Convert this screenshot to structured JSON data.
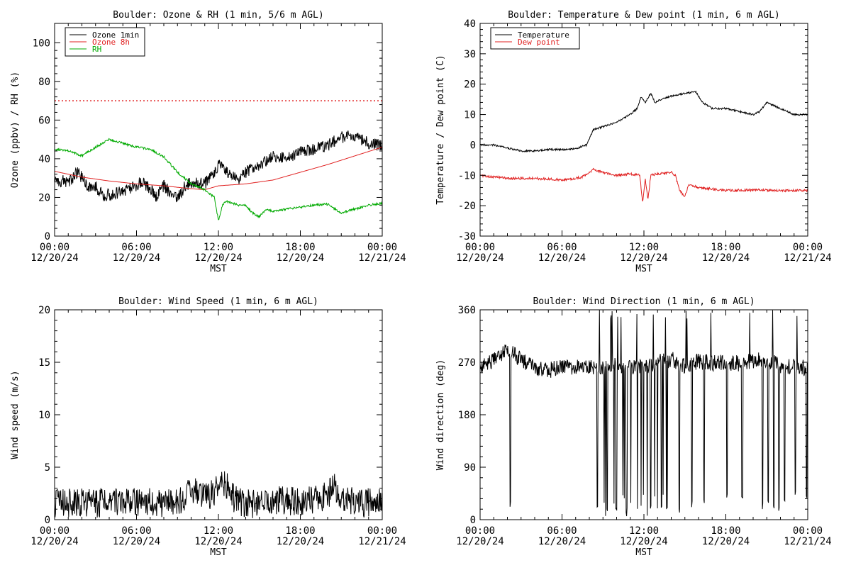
{
  "chart_data": [
    {
      "type": "line",
      "title": "Boulder: Ozone & RH (1 min, 5/6 m AGL)",
      "xlabel": "MST",
      "ylabel": "Ozone (ppbv) / RH (%)",
      "xlim": [
        "12/20/24 00:00",
        "12/21/24 00:00"
      ],
      "ylim": [
        0,
        110
      ],
      "yticks": [
        0,
        20,
        40,
        60,
        80,
        100
      ],
      "xticks": [
        "00:00\n12/20/24",
        "06:00\n12/20/24",
        "12:00\n12/20/24",
        "18:00\n12/20/24",
        "00:00\n12/21/24"
      ],
      "legend": "top-left",
      "reference_line": {
        "value": 70,
        "color": "#e02020",
        "style": "dotted"
      },
      "series": [
        {
          "name": "Ozone 1min",
          "color": "#000000",
          "noise": 3.2,
          "points": [
            [
              0,
              29
            ],
            [
              1,
              28
            ],
            [
              1.7,
              33
            ],
            [
              2.5,
              25
            ],
            [
              3,
              26
            ],
            [
              3.5,
              21
            ],
            [
              4.5,
              22
            ],
            [
              5.5,
              25
            ],
            [
              6.5,
              28
            ],
            [
              7,
              24
            ],
            [
              7.5,
              20
            ],
            [
              8,
              26
            ],
            [
              8.5,
              22
            ],
            [
              9,
              20
            ],
            [
              9.5,
              25
            ],
            [
              10,
              28
            ],
            [
              11,
              27
            ],
            [
              11.5,
              31
            ],
            [
              12,
              37
            ],
            [
              13,
              31
            ],
            [
              13.5,
              30
            ],
            [
              14,
              33
            ],
            [
              15,
              37
            ],
            [
              16,
              41
            ],
            [
              17,
              40
            ],
            [
              18,
              44
            ],
            [
              19,
              45
            ],
            [
              20,
              47
            ],
            [
              21,
              51
            ],
            [
              22,
              52
            ],
            [
              23,
              48
            ],
            [
              24,
              47
            ]
          ]
        },
        {
          "name": "Ozone 8h",
          "color": "#e02020",
          "noise": 0,
          "points": [
            [
              0,
              33.5
            ],
            [
              2,
              30.5
            ],
            [
              4,
              28.5
            ],
            [
              6,
              27
            ],
            [
              8,
              26
            ],
            [
              10,
              24.5
            ],
            [
              11,
              24
            ],
            [
              12,
              26
            ],
            [
              14,
              27
            ],
            [
              16,
              29
            ],
            [
              18,
              33
            ],
            [
              20,
              37
            ],
            [
              22,
              41.5
            ],
            [
              24,
              46
            ]
          ]
        },
        {
          "name": "RH",
          "color": "#00aa00",
          "noise": 0.6,
          "points": [
            [
              0,
              45
            ],
            [
              1,
              44
            ],
            [
              2,
              41.5
            ],
            [
              3,
              46
            ],
            [
              4,
              50
            ],
            [
              5,
              48
            ],
            [
              6,
              46
            ],
            [
              7,
              45
            ],
            [
              8,
              41
            ],
            [
              9,
              33
            ],
            [
              10,
              27
            ],
            [
              11,
              24
            ],
            [
              11.7,
              20
            ],
            [
              12,
              8
            ],
            [
              12.3,
              16
            ],
            [
              12.6,
              18
            ],
            [
              13.5,
              16
            ],
            [
              14,
              16
            ],
            [
              14.5,
              12
            ],
            [
              15,
              10
            ],
            [
              15.5,
              14
            ],
            [
              16,
              13
            ],
            [
              17,
              14
            ],
            [
              18,
              15
            ],
            [
              19,
              16
            ],
            [
              20,
              16.5
            ],
            [
              21,
              12
            ],
            [
              22,
              14
            ],
            [
              23,
              16
            ],
            [
              24,
              17
            ]
          ]
        }
      ]
    },
    {
      "type": "line",
      "title": "Boulder: Temperature & Dew point (1 min, 6 m AGL)",
      "xlabel": "MST",
      "ylabel": "Temperature / Dew point (C)",
      "xlim": [
        "12/20/24 00:00",
        "12/21/24 00:00"
      ],
      "ylim": [
        -30,
        40
      ],
      "yticks": [
        -30,
        -20,
        -10,
        0,
        10,
        20,
        30,
        40
      ],
      "xticks": [
        "00:00\n12/20/24",
        "06:00\n12/20/24",
        "12:00\n12/20/24",
        "18:00\n12/20/24",
        "00:00\n12/21/24"
      ],
      "legend": "top-left",
      "series": [
        {
          "name": "Temperature",
          "color": "#000000",
          "noise": 0.3,
          "points": [
            [
              0,
              0
            ],
            [
              1,
              0
            ],
            [
              2,
              -1
            ],
            [
              3,
              -2
            ],
            [
              4,
              -2
            ],
            [
              5,
              -1.5
            ],
            [
              6,
              -1.5
            ],
            [
              7,
              -1.2
            ],
            [
              7.8,
              0
            ],
            [
              8.3,
              5
            ],
            [
              9,
              6
            ],
            [
              10,
              7.5
            ],
            [
              11,
              10
            ],
            [
              11.5,
              12
            ],
            [
              11.8,
              16
            ],
            [
              12.1,
              14
            ],
            [
              12.5,
              17
            ],
            [
              12.8,
              14
            ],
            [
              13.5,
              15.5
            ],
            [
              14,
              16
            ],
            [
              15,
              17
            ],
            [
              15.8,
              17.5
            ],
            [
              16.3,
              14
            ],
            [
              17,
              12
            ],
            [
              18,
              12
            ],
            [
              19,
              11
            ],
            [
              20,
              10
            ],
            [
              20.5,
              11
            ],
            [
              21,
              14
            ],
            [
              21.5,
              13
            ],
            [
              22,
              12
            ],
            [
              23,
              10
            ],
            [
              24,
              10
            ]
          ]
        },
        {
          "name": "Dew point",
          "color": "#e02020",
          "noise": 0.4,
          "points": [
            [
              0,
              -10
            ],
            [
              2,
              -11
            ],
            [
              4,
              -11
            ],
            [
              6,
              -11.5
            ],
            [
              7,
              -11
            ],
            [
              7.5,
              -10.5
            ],
            [
              8,
              -9
            ],
            [
              8.3,
              -8
            ],
            [
              9,
              -9
            ],
            [
              10,
              -10
            ],
            [
              11,
              -9.5
            ],
            [
              11.7,
              -10
            ],
            [
              11.9,
              -19
            ],
            [
              12.1,
              -11
            ],
            [
              12.3,
              -18
            ],
            [
              12.5,
              -10
            ],
            [
              13,
              -9.5
            ],
            [
              14,
              -9
            ],
            [
              14.3,
              -10
            ],
            [
              14.6,
              -15
            ],
            [
              15,
              -17
            ],
            [
              15.3,
              -13
            ],
            [
              16,
              -14
            ],
            [
              17,
              -14.5
            ],
            [
              18,
              -15
            ],
            [
              20,
              -14.8
            ],
            [
              22,
              -15
            ],
            [
              24,
              -15
            ]
          ]
        }
      ]
    },
    {
      "type": "line",
      "title": "Boulder: Wind Speed (1 min, 6 m AGL)",
      "xlabel": "MST",
      "ylabel": "Wind speed (m/s)",
      "xlim": [
        "12/20/24 00:00",
        "12/21/24 00:00"
      ],
      "ylim": [
        0,
        20
      ],
      "yticks": [
        0,
        5,
        10,
        15,
        20
      ],
      "xticks": [
        "00:00\n12/20/24",
        "06:00\n12/20/24",
        "12:00\n12/20/24",
        "18:00\n12/20/24",
        "00:00\n12/21/24"
      ],
      "series": [
        {
          "color": "#000000",
          "noise": 1.4,
          "points": [
            [
              0,
              1.6
            ],
            [
              3,
              1.6
            ],
            [
              6,
              1.7
            ],
            [
              8,
              1.6
            ],
            [
              9.5,
              1.9
            ],
            [
              10,
              3
            ],
            [
              11,
              2
            ],
            [
              12,
              3
            ],
            [
              12.5,
              3.4
            ],
            [
              13,
              2.2
            ],
            [
              14,
              1.5
            ],
            [
              15,
              1.5
            ],
            [
              16,
              1.8
            ],
            [
              18,
              1.7
            ],
            [
              20,
              2.3
            ],
            [
              20.5,
              3.2
            ],
            [
              21,
              2
            ],
            [
              22,
              1.6
            ],
            [
              24,
              1.6
            ]
          ]
        }
      ]
    },
    {
      "type": "line",
      "title": "Boulder: Wind Direction (1 min, 6 m AGL)",
      "xlabel": "MST",
      "ylabel": "Wind direction (deg)",
      "xlim": [
        "12/20/24 00:00",
        "12/21/24 00:00"
      ],
      "ylim": [
        0,
        360
      ],
      "yticks": [
        0,
        90,
        180,
        270,
        360
      ],
      "xticks": [
        "00:00\n12/20/24",
        "06:00\n12/20/24",
        "12:00\n12/20/24",
        "18:00\n12/20/24",
        "00:00\n12/21/24"
      ],
      "series": [
        {
          "color": "#000000",
          "noise": 14,
          "points": [
            [
              0,
              265
            ],
            [
              1,
              272
            ],
            [
              2,
              290
            ],
            [
              3,
              275
            ],
            [
              4,
              262
            ],
            [
              5,
              255
            ],
            [
              6,
              265
            ],
            [
              7,
              260
            ],
            [
              8,
              262
            ],
            [
              9,
              258
            ],
            [
              10,
              265
            ],
            [
              11,
              260
            ],
            [
              12,
              262
            ],
            [
              13,
              270
            ],
            [
              14,
              275
            ],
            [
              15,
              262
            ],
            [
              16,
              272
            ],
            [
              17,
              268
            ],
            [
              18,
              270
            ],
            [
              19,
              268
            ],
            [
              20,
              272
            ],
            [
              21,
              275
            ],
            [
              22,
              265
            ],
            [
              23,
              262
            ],
            [
              24,
              260
            ]
          ],
          "wraps": [
            [
              2.2,
              20
            ],
            [
              8.6,
              12
            ],
            [
              9.3,
              8
            ],
            [
              10,
              15
            ],
            [
              10.7,
              6
            ],
            [
              11.5,
              10
            ],
            [
              12.5,
              18
            ],
            [
              13.3,
              12
            ],
            [
              14.6,
              8
            ],
            [
              15.5,
              20
            ],
            [
              16.4,
              28
            ],
            [
              18.1,
              35
            ],
            [
              19.2,
              30
            ],
            [
              20.7,
              18
            ],
            [
              21.1,
              22
            ],
            [
              21.5,
              15
            ],
            [
              21.9,
              10
            ],
            [
              22.3,
              25
            ],
            [
              23.1,
              40
            ],
            [
              23.9,
              35
            ]
          ]
        }
      ]
    }
  ]
}
